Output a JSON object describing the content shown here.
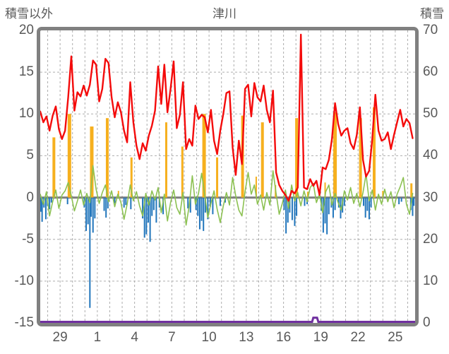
{
  "header": {
    "left_axis_title": "積雪以外",
    "chart_title": "津川",
    "right_axis_title": "積雪"
  },
  "chart_data": {
    "type": "combo",
    "title": "津川",
    "left_axis": {
      "title": "積雪以外",
      "min": -15,
      "max": 20,
      "tick_step": 5,
      "ticks": [
        20,
        15,
        10,
        5,
        0,
        -5,
        -10,
        -15
      ]
    },
    "right_axis": {
      "title": "積雪",
      "min": 0,
      "max": 70,
      "tick_step": 10,
      "ticks": [
        70,
        60,
        50,
        40,
        30,
        20,
        10,
        0
      ]
    },
    "x_axis": {
      "tick_labels": [
        "29",
        "1",
        "4",
        "7",
        "10",
        "13",
        "16",
        "19",
        "22",
        "25"
      ],
      "tick_positions_days": [
        1.6,
        4.6,
        7.6,
        10.6,
        13.6,
        16.6,
        19.6,
        22.6,
        25.6,
        28.6
      ],
      "total_days": 30.2,
      "day_gridline_offset": 0.6,
      "day_gridline_count": 30
    },
    "grid": {
      "horizontal_dashed_at": [
        15,
        10,
        5,
        -5,
        -10
      ],
      "zero_line": 0
    },
    "colors": {
      "red_line": "#f40b0b",
      "green_line": "#8cc152",
      "yellow_bars": "#f6b01e",
      "blue_bars": "#2276bc",
      "purple_line": "#7030a0",
      "border_gray": "#808080",
      "grid_gray": "#adadad",
      "text_gray": "#595959"
    },
    "series": [
      {
        "name": "red-line",
        "type": "line",
        "axis": "left",
        "sample_step_days": 0.25,
        "values": [
          10.3,
          9.0,
          9.7,
          8.0,
          9.8,
          10.9,
          8.2,
          7.0,
          8.0,
          12.0,
          16.9,
          10.4,
          12.6,
          12.1,
          13.4,
          12.2,
          13.5,
          16.4,
          15.9,
          11.5,
          13.0,
          16.6,
          16.1,
          12.0,
          9.6,
          11.4,
          10.2,
          8.0,
          6.6,
          13.8,
          9.0,
          6.2,
          4.6,
          6.5,
          5.6,
          7.4,
          8.6,
          10.4,
          15.7,
          11.2,
          15.9,
          10.2,
          13.0,
          16.3,
          8.3,
          9.9,
          13.8,
          5.8,
          7.0,
          6.2,
          11.0,
          9.4,
          9.9,
          9.6,
          7.8,
          10.5,
          6.8,
          5.2,
          8.0,
          10.0,
          12.5,
          12.7,
          6.0,
          2.7,
          6.8,
          4.0,
          13.0,
          13.5,
          9.7,
          13.7,
          12.0,
          11.5,
          13.4,
          10.5,
          9.0,
          12.8,
          3.0,
          1.5,
          0.8,
          0.3,
          -0.4,
          0.8,
          0.5,
          1.2,
          19.5,
          1.2,
          1.0,
          2.2,
          1.4,
          2.0,
          0.3,
          3.6,
          3.4,
          4.5,
          7.0,
          11.3,
          8.8,
          7.4,
          8.0,
          8.3,
          6.5,
          5.8,
          7.5,
          10.8,
          4.5,
          2.5,
          3.2,
          7.0,
          12.3,
          8.0,
          6.8,
          7.0,
          7.8,
          5.8,
          7.5,
          9.0,
          10.5,
          8.5,
          9.4,
          8.9,
          7.1
        ]
      },
      {
        "name": "green-line",
        "type": "line",
        "axis": "left",
        "sample_step_days": 0.25,
        "values": [
          0.4,
          -0.8,
          0.7,
          -2.2,
          -0.5,
          0.9,
          -1.3,
          0.3,
          0.8,
          1.8,
          0.2,
          -1.6,
          -0.4,
          0.9,
          -0.9,
          0.5,
          -0.6,
          3.8,
          1.0,
          -0.7,
          0.6,
          1.5,
          -0.5,
          0.8,
          -1.1,
          0.4,
          -0.6,
          -2.6,
          -0.8,
          1.5,
          -0.4,
          0.7,
          -1.0,
          -2.2,
          0.5,
          -0.9,
          0.8,
          -0.3,
          1.2,
          -1.8,
          0.4,
          -2.8,
          -0.6,
          0.9,
          -1.2,
          -2.0,
          0.6,
          -3.3,
          -1.0,
          2.6,
          -0.8,
          0.5,
          2.9,
          0.3,
          -2.4,
          -0.7,
          0.8,
          -1.4,
          -3.0,
          -1.0,
          0.6,
          -0.9,
          2.4,
          0.2,
          -1.5,
          -2.2,
          0.7,
          3.0,
          0.4,
          1.5,
          -0.8,
          0.3,
          -1.5,
          0.6,
          -0.9,
          3.2,
          0.5,
          -2.0,
          -0.7,
          0.9,
          -1.3,
          1.5,
          -0.4,
          0.6,
          -1.0,
          0.8,
          -0.5,
          1.2,
          1.7,
          -0.6,
          0.4,
          -1.8,
          0.7,
          1.5,
          -0.9,
          0.5,
          -0.6,
          -1.5,
          0.8,
          -0.3,
          1.2,
          -0.7,
          0.5,
          -1.1,
          0.6,
          2.8,
          -0.4,
          0.9,
          -1.5,
          0.4,
          -0.8,
          1.0,
          -0.5,
          0.7,
          -1.2,
          0.4,
          1.3,
          2.4,
          -0.8,
          -2.0,
          0.5
        ]
      },
      {
        "name": "yellow-bars",
        "type": "bar",
        "axis": "left",
        "points_day_value_width": [
          [
            1.1,
            7.2,
            4
          ],
          [
            2.35,
            10.0,
            5
          ],
          [
            4.15,
            8.5,
            5
          ],
          [
            5.4,
            9.5,
            4
          ],
          [
            6.3,
            0.8,
            2
          ],
          [
            7.35,
            4.8,
            3
          ],
          [
            10.15,
            9.0,
            3
          ],
          [
            11.45,
            6.1,
            3
          ],
          [
            13.2,
            10.0,
            5
          ],
          [
            14.25,
            4.8,
            3
          ],
          [
            16.3,
            9.8,
            4
          ],
          [
            17.4,
            2.5,
            2
          ],
          [
            17.9,
            9.0,
            4
          ],
          [
            18.95,
            1.5,
            2
          ],
          [
            20.65,
            9.5,
            4
          ],
          [
            21.55,
            0.7,
            2
          ],
          [
            22.95,
            1.8,
            2
          ],
          [
            23.75,
            10.2,
            5
          ],
          [
            25.8,
            9.5,
            4
          ],
          [
            26.9,
            10.8,
            4
          ],
          [
            27.6,
            0.8,
            2
          ],
          [
            29.9,
            1.7,
            3
          ]
        ]
      },
      {
        "name": "blue-bars",
        "type": "bar",
        "axis": "left",
        "points_day_value_width": [
          [
            0.05,
            -1.7,
            2
          ],
          [
            0.15,
            -2.9,
            2
          ],
          [
            0.3,
            -1.2,
            2
          ],
          [
            0.45,
            -2.6,
            2
          ],
          [
            0.6,
            -1.0,
            2
          ],
          [
            0.75,
            -1.4,
            2
          ],
          [
            0.9,
            -0.6,
            2
          ],
          [
            2.2,
            -0.8,
            2
          ],
          [
            3.55,
            -1.2,
            2
          ],
          [
            3.7,
            -4.0,
            2
          ],
          [
            3.85,
            -3.2,
            2
          ],
          [
            4.0,
            -13.2,
            2
          ],
          [
            4.1,
            -2.3,
            2
          ],
          [
            4.25,
            -4.2,
            2
          ],
          [
            4.4,
            -2.5,
            2
          ],
          [
            5.15,
            -1.6,
            2
          ],
          [
            5.3,
            -2.4,
            2
          ],
          [
            5.45,
            -1.3,
            2
          ],
          [
            6.0,
            -0.7,
            2
          ],
          [
            6.75,
            -1.2,
            2
          ],
          [
            6.9,
            -0.9,
            2
          ],
          [
            7.3,
            -1.4,
            2
          ],
          [
            8.25,
            -2.5,
            2
          ],
          [
            8.4,
            -4.8,
            2
          ],
          [
            8.55,
            -4.4,
            2
          ],
          [
            8.7,
            -3.0,
            2
          ],
          [
            8.85,
            -5.3,
            2
          ],
          [
            9.0,
            -2.2,
            2
          ],
          [
            9.15,
            -1.5,
            2
          ],
          [
            9.35,
            -3.0,
            2
          ],
          [
            9.6,
            -1.2,
            2
          ],
          [
            9.9,
            -2.0,
            2
          ],
          [
            11.9,
            -1.3,
            2
          ],
          [
            12.1,
            -1.8,
            2
          ],
          [
            12.55,
            -1.5,
            2
          ],
          [
            12.7,
            -2.2,
            2
          ],
          [
            12.85,
            -3.8,
            2
          ],
          [
            13.0,
            -2.8,
            2
          ],
          [
            13.15,
            -4.0,
            2
          ],
          [
            13.3,
            -1.8,
            2
          ],
          [
            13.5,
            -2.6,
            2
          ],
          [
            13.7,
            -1.1,
            2
          ],
          [
            13.9,
            -2.0,
            2
          ],
          [
            14.5,
            -1.0,
            2
          ],
          [
            14.9,
            -0.6,
            2
          ],
          [
            19.65,
            -1.5,
            2
          ],
          [
            19.8,
            -4.3,
            2
          ],
          [
            19.95,
            -3.0,
            2
          ],
          [
            20.1,
            -1.8,
            2
          ],
          [
            20.3,
            -2.7,
            2
          ],
          [
            20.5,
            -3.4,
            2
          ],
          [
            20.65,
            -2.2,
            2
          ],
          [
            21.3,
            -1.0,
            2
          ],
          [
            21.5,
            -0.8,
            2
          ],
          [
            22.65,
            -1.6,
            2
          ],
          [
            22.8,
            -4.2,
            2
          ],
          [
            22.95,
            -3.1,
            2
          ],
          [
            23.1,
            -4.4,
            2
          ],
          [
            23.25,
            -2.0,
            2
          ],
          [
            23.45,
            -1.2,
            2
          ],
          [
            23.6,
            -2.4,
            2
          ],
          [
            23.75,
            -1.5,
            2
          ],
          [
            24.05,
            -1.2,
            2
          ],
          [
            24.2,
            -2.5,
            2
          ],
          [
            24.35,
            -1.8,
            2
          ],
          [
            24.5,
            -1.0,
            2
          ],
          [
            26.05,
            -1.0,
            2
          ],
          [
            26.2,
            -2.4,
            2
          ],
          [
            26.35,
            -1.6,
            2
          ],
          [
            26.5,
            -2.6,
            2
          ],
          [
            26.65,
            -1.2,
            2
          ],
          [
            28.9,
            -0.8,
            2
          ],
          [
            29.1,
            -0.5,
            2
          ],
          [
            29.85,
            -1.5,
            2
          ],
          [
            30.0,
            -2.2,
            2
          ],
          [
            30.1,
            -1.0,
            2
          ]
        ]
      },
      {
        "name": "purple-line",
        "type": "line",
        "axis": "right",
        "points_day_value": [
          [
            0,
            0
          ],
          [
            21.9,
            0
          ],
          [
            22.0,
            1
          ],
          [
            22.3,
            1
          ],
          [
            22.4,
            0
          ],
          [
            30.2,
            0
          ]
        ]
      }
    ]
  }
}
